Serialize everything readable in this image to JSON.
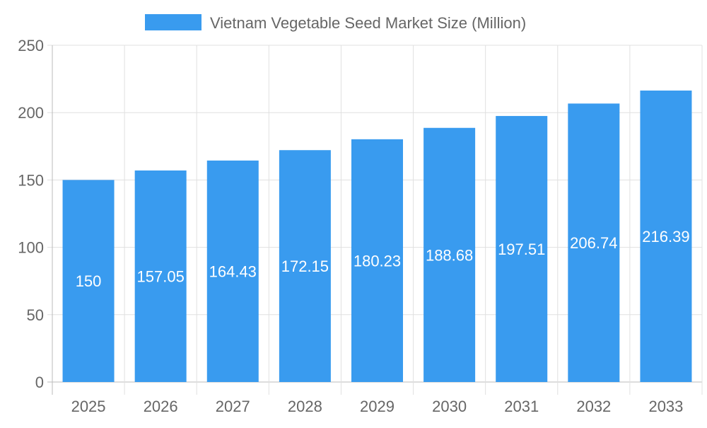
{
  "chart_data": {
    "type": "bar",
    "title": "",
    "xlabel": "",
    "ylabel": "",
    "categories": [
      "2025",
      "2026",
      "2027",
      "2028",
      "2029",
      "2030",
      "2031",
      "2032",
      "2033"
    ],
    "series": [
      {
        "name": "Vietnam Vegetable Seed Market Size (Million)",
        "values": [
          150,
          157.05,
          164.43,
          172.15,
          180.23,
          188.68,
          197.51,
          206.74,
          216.39
        ]
      }
    ],
    "ylim": [
      0,
      250
    ],
    "yticks": [
      0,
      50,
      100,
      150,
      200,
      250
    ],
    "grid": true,
    "legend": "top-center",
    "data_labels": true,
    "colors": {
      "bar": "#399bef",
      "label": "#ffffff",
      "grid": "#e0e0e0",
      "text": "#666666"
    }
  }
}
